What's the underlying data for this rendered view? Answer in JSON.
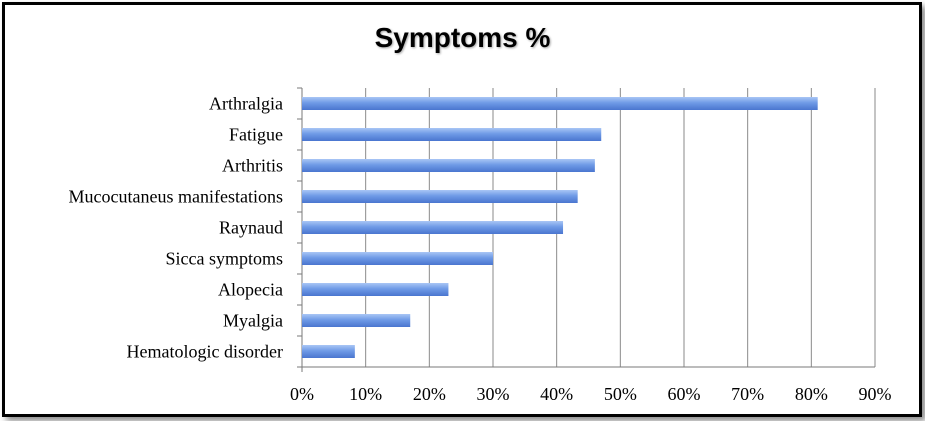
{
  "chart_data": {
    "type": "bar",
    "orientation": "horizontal",
    "title": "Symptoms %",
    "categories": [
      "Arthralgia",
      "Fatigue",
      "Arthritis",
      "Mucocutaneus manifestations",
      "Raynaud",
      "Sicca symptoms",
      "Alopecia",
      "Myalgia",
      "Hematologic disorder"
    ],
    "values": [
      81,
      47,
      46,
      43.3,
      41,
      30,
      23,
      17,
      8.3
    ],
    "xlim": [
      0,
      90
    ],
    "x_ticks": [
      "0%",
      "10%",
      "20%",
      "30%",
      "40%",
      "50%",
      "60%",
      "70%",
      "80%",
      "90%"
    ],
    "grid": "vertical",
    "bar_color": "#6f9ae6"
  }
}
